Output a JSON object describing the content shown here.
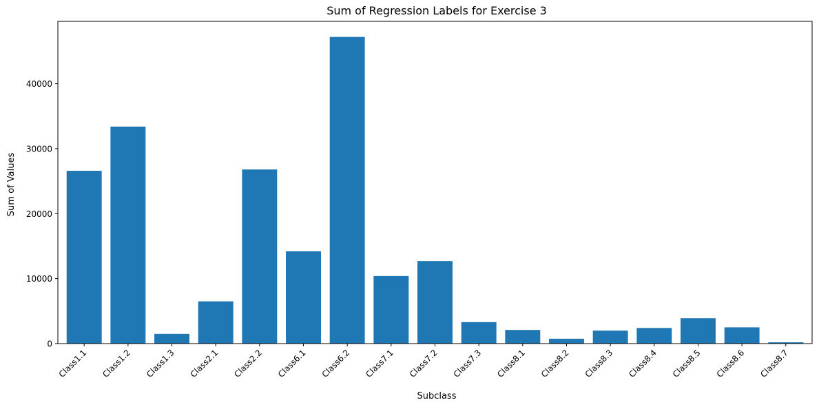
{
  "chart_data": {
    "type": "bar",
    "title": "Sum of Regression Labels for Exercise 3",
    "xlabel": "Subclass",
    "ylabel": "Sum of Values",
    "categories": [
      "Class1.1",
      "Class1.2",
      "Class1.3",
      "Class2.1",
      "Class2.2",
      "Class6.1",
      "Class6.2",
      "Class7.1",
      "Class7.2",
      "Class7.3",
      "Class8.1",
      "Class8.2",
      "Class8.3",
      "Class8.4",
      "Class8.5",
      "Class8.6",
      "Class8.7"
    ],
    "values": [
      26600,
      33400,
      1500,
      6500,
      26800,
      14200,
      47200,
      10400,
      12700,
      3300,
      2100,
      750,
      2000,
      2400,
      3900,
      2500,
      200
    ],
    "ylim": [
      0,
      49600
    ],
    "yticks": [
      0,
      10000,
      20000,
      30000,
      40000
    ],
    "bar_color": "#1f77b4",
    "grid": false,
    "legend": false
  }
}
